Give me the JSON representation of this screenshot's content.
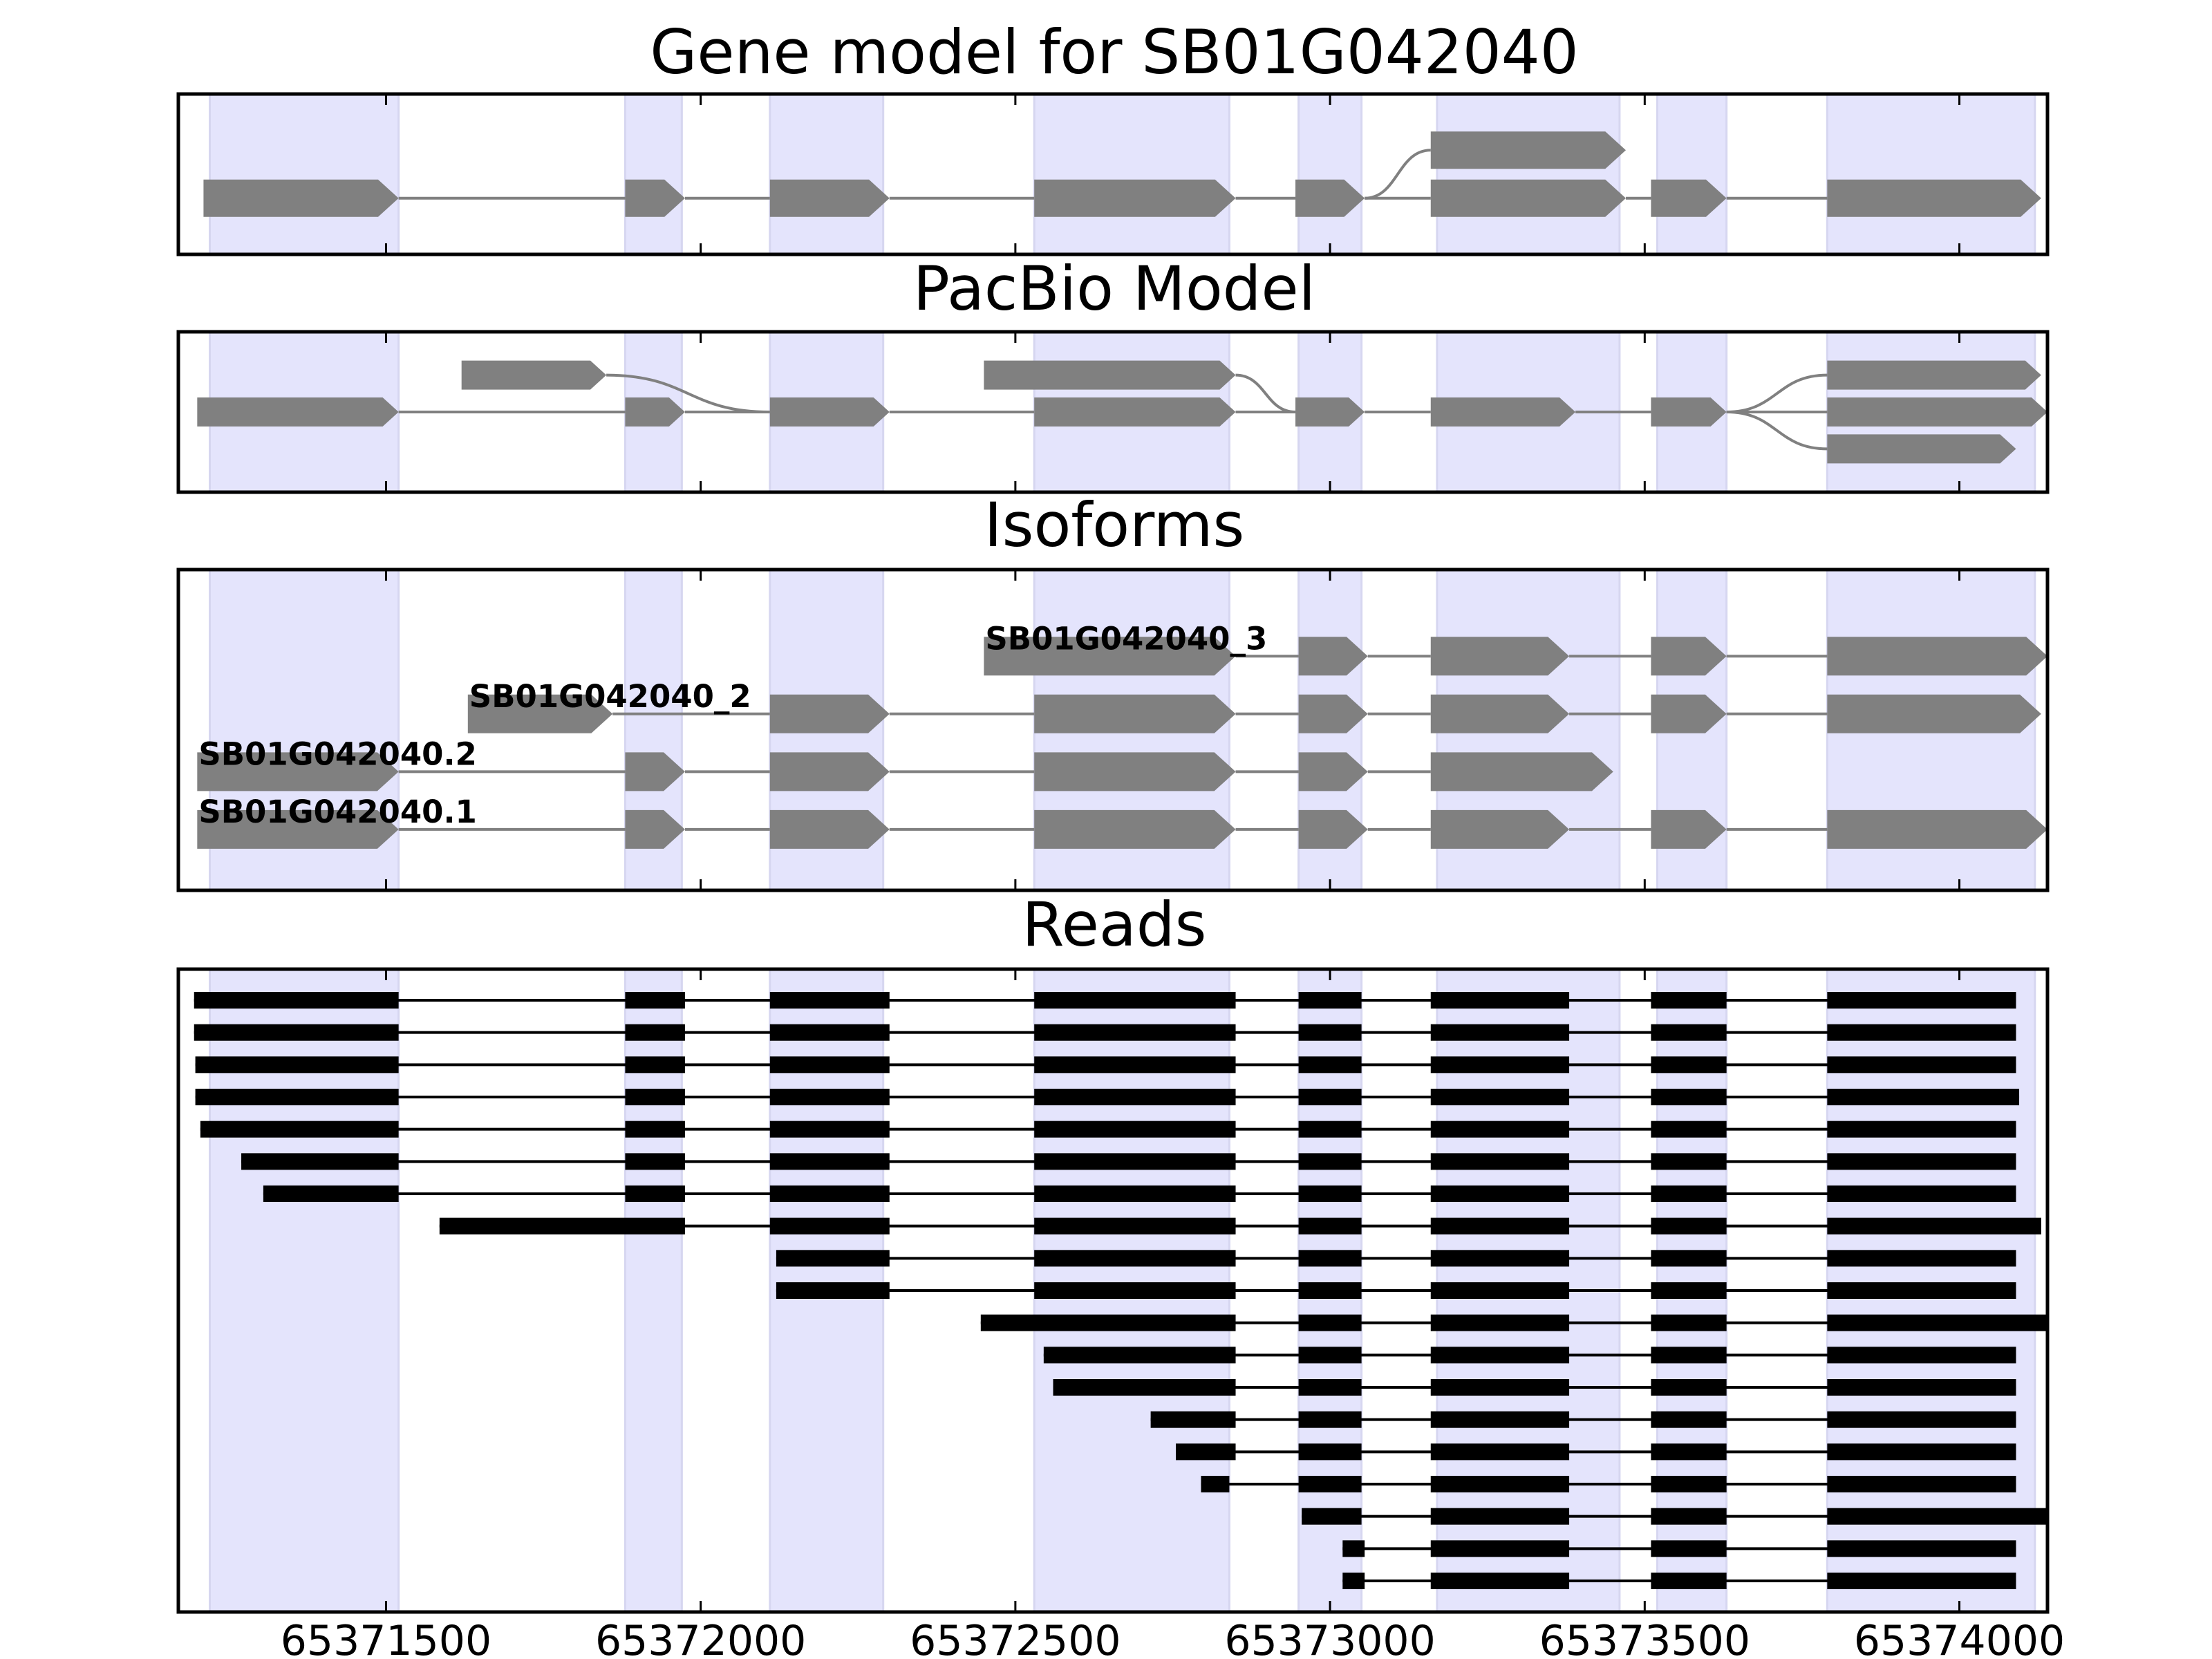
{
  "figure": {
    "panels": {
      "gene": {
        "title": "Gene model for SB01G042040"
      },
      "pacbio": {
        "title": "PacBio Model"
      },
      "isoforms": {
        "title": "Isoforms"
      },
      "reads": {
        "title": "Reads"
      }
    },
    "x_ticks": [
      {
        "value": 65371500,
        "label": "65371500"
      },
      {
        "value": 65372000,
        "label": "65372000"
      },
      {
        "value": 65372500,
        "label": "65372500"
      },
      {
        "value": 65373000,
        "label": "65373000"
      },
      {
        "value": 65373500,
        "label": "65373500"
      },
      {
        "value": 65374000,
        "label": "65374000"
      }
    ],
    "x_range": [
      65371170,
      65374140
    ],
    "highlight_regions": [
      [
        65371220,
        65371520
      ],
      [
        65371880,
        65371970
      ],
      [
        65372110,
        65372290
      ],
      [
        65372530,
        65372840
      ],
      [
        65372950,
        65373050
      ],
      [
        65373170,
        65373460
      ],
      [
        65373520,
        65373630
      ],
      [
        65373790,
        65374120
      ]
    ],
    "colors": {
      "highlight": "#e4e4fc",
      "highlight_edge": "#d6d6f0",
      "feature": "#808080",
      "read": "#000000"
    },
    "gene_model": {
      "tracks": [
        {
          "y": 0.65,
          "exons": [
            [
              65371210,
              65371520
            ],
            [
              65371880,
              65371975
            ],
            [
              65372110,
              65372300
            ],
            [
              65372530,
              65372850
            ],
            [
              65372945,
              65373055
            ],
            [
              65373160,
              65373470
            ],
            [
              65373510,
              65373630
            ],
            [
              65373790,
              65374130
            ]
          ]
        },
        {
          "y": 0.35,
          "exons": [
            [
              65373160,
              65373470
            ]
          ],
          "branch_from": 65373055
        }
      ]
    },
    "pacbio_model": {
      "tracks": [
        {
          "y": 0.5,
          "exons": [
            [
              65371200,
              65371520
            ],
            [
              65371880,
              65371975
            ],
            [
              65372110,
              65372300
            ],
            [
              65372530,
              65372850
            ],
            [
              65372945,
              65373055
            ],
            [
              65373160,
              65373390
            ],
            [
              65373510,
              65373630
            ],
            [
              65373790,
              65374140
            ]
          ]
        },
        {
          "y": 0.27,
          "exons": [
            [
              65371620,
              65371850
            ],
            [
              65372450,
              65372850
            ]
          ],
          "joins": [
            [
              65371850,
              65372110
            ],
            [
              65372850,
              65372945
            ]
          ]
        },
        {
          "y": 0.27,
          "exons": [
            [
              65373790,
              65374130
            ]
          ],
          "branch_from": 65373630
        },
        {
          "y": 0.73,
          "exons": [
            [
              65373790,
              65374090
            ]
          ],
          "branch_from": 65373630
        }
      ]
    },
    "isoforms": {
      "tracks": [
        {
          "label": "SB01G042040_3",
          "y": 0.27,
          "exons": [
            [
              65372450,
              65372850
            ],
            [
              65372950,
              65373060
            ],
            [
              65373160,
              65373380
            ],
            [
              65373510,
              65373630
            ],
            [
              65373790,
              65374140
            ]
          ]
        },
        {
          "label": "SB01G042040_2",
          "y": 0.45,
          "exons": [
            [
              65371630,
              65371860
            ],
            [
              65372110,
              65372300
            ],
            [
              65372530,
              65372850
            ],
            [
              65372950,
              65373060
            ],
            [
              65373160,
              65373380
            ],
            [
              65373510,
              65373630
            ],
            [
              65373790,
              65374130
            ]
          ]
        },
        {
          "label": "SB01G042040.2",
          "y": 0.63,
          "exons": [
            [
              65371200,
              65371520
            ],
            [
              65371880,
              65371975
            ],
            [
              65372110,
              65372300
            ],
            [
              65372530,
              65372850
            ],
            [
              65372950,
              65373060
            ],
            [
              65373160,
              65373450
            ]
          ]
        },
        {
          "label": "SB01G042040.1",
          "y": 0.81,
          "exons": [
            [
              65371200,
              65371520
            ],
            [
              65371880,
              65371975
            ],
            [
              65372110,
              65372300
            ],
            [
              65372530,
              65372850
            ],
            [
              65372950,
              65373060
            ],
            [
              65373160,
              65373380
            ],
            [
              65373510,
              65373630
            ],
            [
              65373790,
              65374140
            ]
          ]
        }
      ]
    },
    "reads": [
      [
        [
          65371195,
          65371520
        ],
        [
          65371880,
          65371975
        ],
        [
          65372110,
          65372300
        ],
        [
          65372530,
          65372850
        ],
        [
          65372950,
          65373050
        ],
        [
          65373160,
          65373380
        ],
        [
          65373510,
          65373630
        ],
        [
          65373790,
          65374090
        ]
      ],
      [
        [
          65371195,
          65371520
        ],
        [
          65371880,
          65371975
        ],
        [
          65372110,
          65372300
        ],
        [
          65372530,
          65372850
        ],
        [
          65372950,
          65373050
        ],
        [
          65373160,
          65373380
        ],
        [
          65373510,
          65373630
        ],
        [
          65373790,
          65374090
        ]
      ],
      [
        [
          65371197,
          65371520
        ],
        [
          65371880,
          65371975
        ],
        [
          65372110,
          65372300
        ],
        [
          65372530,
          65372850
        ],
        [
          65372950,
          65373050
        ],
        [
          65373160,
          65373380
        ],
        [
          65373510,
          65373630
        ],
        [
          65373790,
          65374090
        ]
      ],
      [
        [
          65371197,
          65371520
        ],
        [
          65371880,
          65371975
        ],
        [
          65372110,
          65372300
        ],
        [
          65372530,
          65372850
        ],
        [
          65372950,
          65373050
        ],
        [
          65373160,
          65373380
        ],
        [
          65373510,
          65373630
        ],
        [
          65373790,
          65374095
        ]
      ],
      [
        [
          65371205,
          65371520
        ],
        [
          65371880,
          65371975
        ],
        [
          65372110,
          65372300
        ],
        [
          65372530,
          65372850
        ],
        [
          65372950,
          65373050
        ],
        [
          65373160,
          65373380
        ],
        [
          65373510,
          65373630
        ],
        [
          65373790,
          65374090
        ]
      ],
      [
        [
          65371270,
          65371520
        ],
        [
          65371880,
          65371975
        ],
        [
          65372110,
          65372300
        ],
        [
          65372530,
          65372850
        ],
        [
          65372950,
          65373050
        ],
        [
          65373160,
          65373380
        ],
        [
          65373510,
          65373630
        ],
        [
          65373790,
          65374090
        ]
      ],
      [
        [
          65371305,
          65371520
        ],
        [
          65371880,
          65371975
        ],
        [
          65372110,
          65372300
        ],
        [
          65372530,
          65372850
        ],
        [
          65372950,
          65373050
        ],
        [
          65373160,
          65373380
        ],
        [
          65373510,
          65373630
        ],
        [
          65373790,
          65374090
        ]
      ],
      [
        [
          65371585,
          65371975
        ],
        [
          65372110,
          65372300
        ],
        [
          65372530,
          65372850
        ],
        [
          65372950,
          65373050
        ],
        [
          65373160,
          65373380
        ],
        [
          65373510,
          65373630
        ],
        [
          65373790,
          65374130
        ]
      ],
      [
        [
          65372120,
          65372300
        ],
        [
          65372530,
          65372850
        ],
        [
          65372950,
          65373050
        ],
        [
          65373160,
          65373380
        ],
        [
          65373510,
          65373630
        ],
        [
          65373790,
          65374090
        ]
      ],
      [
        [
          65372120,
          65372300
        ],
        [
          65372530,
          65372850
        ],
        [
          65372950,
          65373050
        ],
        [
          65373160,
          65373380
        ],
        [
          65373510,
          65373630
        ],
        [
          65373790,
          65374090
        ]
      ],
      [
        [
          65372445,
          65372850
        ],
        [
          65372950,
          65373050
        ],
        [
          65373160,
          65373380
        ],
        [
          65373510,
          65373630
        ],
        [
          65373790,
          65374140
        ]
      ],
      [
        [
          65372545,
          65372850
        ],
        [
          65372950,
          65373050
        ],
        [
          65373160,
          65373380
        ],
        [
          65373510,
          65373630
        ],
        [
          65373790,
          65374090
        ]
      ],
      [
        [
          65372560,
          65372850
        ],
        [
          65372950,
          65373050
        ],
        [
          65373160,
          65373380
        ],
        [
          65373510,
          65373630
        ],
        [
          65373790,
          65374090
        ]
      ],
      [
        [
          65372715,
          65372850
        ],
        [
          65372950,
          65373050
        ],
        [
          65373160,
          65373380
        ],
        [
          65373510,
          65373630
        ],
        [
          65373790,
          65374090
        ]
      ],
      [
        [
          65372755,
          65372850
        ],
        [
          65372950,
          65373050
        ],
        [
          65373160,
          65373380
        ],
        [
          65373510,
          65373630
        ],
        [
          65373790,
          65374090
        ]
      ],
      [
        [
          65372795,
          65372840
        ],
        [
          65372950,
          65373050
        ],
        [
          65373160,
          65373380
        ],
        [
          65373510,
          65373630
        ],
        [
          65373790,
          65374090
        ]
      ],
      [
        [
          65372955,
          65373050
        ],
        [
          65373160,
          65373380
        ],
        [
          65373510,
          65373630
        ],
        [
          65373790,
          65374140
        ]
      ],
      [
        [
          65373020,
          65373055
        ],
        [
          65373160,
          65373380
        ],
        [
          65373510,
          65373630
        ],
        [
          65373790,
          65374090
        ]
      ],
      [
        [
          65373020,
          65373055
        ],
        [
          65373160,
          65373380
        ],
        [
          65373510,
          65373630
        ],
        [
          65373790,
          65374090
        ]
      ]
    ]
  }
}
